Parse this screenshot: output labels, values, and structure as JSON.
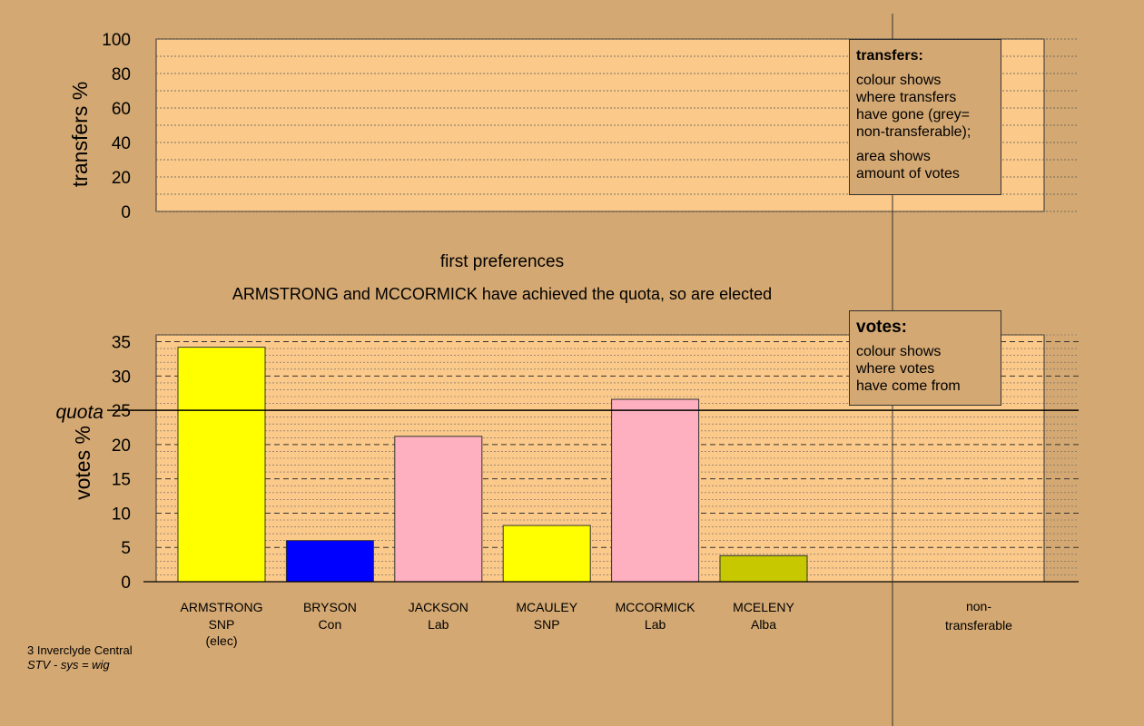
{
  "chart_data": [
    {
      "type": "bar",
      "ylabel": "transfers %",
      "ylim": [
        0,
        100
      ],
      "yticks": [
        0,
        20,
        40,
        60,
        80,
        100
      ],
      "categories": [],
      "values": []
    },
    {
      "type": "bar",
      "title": "first preferences",
      "subtitle": "ARMSTRONG and MCCORMICK have achieved the quota, so are elected",
      "ylabel": "votes %",
      "ylim": [
        0,
        36
      ],
      "yticks": [
        0,
        5,
        10,
        15,
        20,
        25,
        30,
        35
      ],
      "quota": 25,
      "quota_label": "quota",
      "categories": [
        {
          "name": "ARMSTRONG",
          "party": "SNP",
          "note": "(elec)",
          "value": 34.2,
          "color": "#ffff00"
        },
        {
          "name": "BRYSON",
          "party": "Con",
          "note": "",
          "value": 6.0,
          "color": "#0000ff"
        },
        {
          "name": "JACKSON",
          "party": "Lab",
          "note": "",
          "value": 21.2,
          "color": "#ffb0c0"
        },
        {
          "name": "MCAULEY",
          "party": "SNP",
          "note": "",
          "value": 8.2,
          "color": "#ffff00"
        },
        {
          "name": "MCCORMICK",
          "party": "Lab",
          "note": "",
          "value": 26.6,
          "color": "#ffb0c0"
        },
        {
          "name": "MCELENY",
          "party": "Alba",
          "note": "",
          "value": 3.8,
          "color": "#c8c800"
        }
      ],
      "extra_category": "non-\ntransferable"
    }
  ],
  "legends": {
    "transfers": {
      "heading": "transfers:",
      "lines1": [
        "colour shows",
        "where transfers",
        "have gone (grey=",
        "non-transferable);"
      ],
      "lines2": [
        "area shows",
        "amount of votes"
      ]
    },
    "votes": {
      "heading": "votes:",
      "lines": [
        "colour shows",
        "where votes",
        "have come from"
      ]
    }
  },
  "footer": {
    "line1": "3 Inverclyde Central",
    "line2": "STV - sys = wig"
  },
  "colors": {
    "background": "#d4a872",
    "plot_fill": "#fbc98a"
  }
}
